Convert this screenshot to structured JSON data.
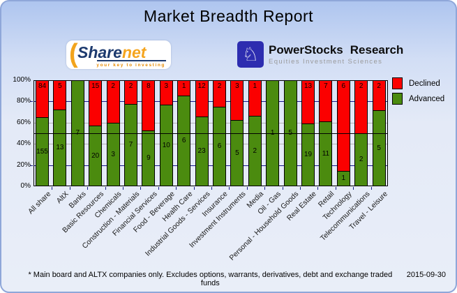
{
  "page": {
    "title": "Market Breadth Report",
    "footer_note": "* Main board and ALTX companies only. Excludes options, warrants, derivatives, debt and exchange traded funds",
    "footer_date": "2015-09-30"
  },
  "logos": {
    "sharenet": {
      "arc_glyph": "(",
      "name_part1": "Share",
      "name_part2": "net",
      "tagline": "your key to investing",
      "navy_color": "#1d3a6e",
      "orange_color": "#f5a51f"
    },
    "powerstocks": {
      "knight_glyph": "♘",
      "title1": "PowerStocks",
      "title2": "Research",
      "subtitle": "Equities Investment Sciences",
      "square_color": "#2d2db0"
    }
  },
  "legend": [
    {
      "label": "Declined",
      "color": "#fb0000"
    },
    {
      "label": "Advanced",
      "color": "#4b8b0f"
    }
  ],
  "chart_data": {
    "type": "bar",
    "stacked": true,
    "title": "Market Breadth Report",
    "xlabel": "",
    "ylabel": "",
    "ylim": [
      0,
      100
    ],
    "y_unit": "percent of companies",
    "y_ticks": [
      {
        "label": "100%",
        "value": 100
      },
      {
        "label": "80%",
        "value": 80
      },
      {
        "label": "60%",
        "value": 60
      },
      {
        "label": "40%",
        "value": 40
      },
      {
        "label": "20%",
        "value": 20
      },
      {
        "label": "0%",
        "value": 0
      }
    ],
    "grid": {
      "navy_lines_percent": [
        20,
        80
      ],
      "gray_lines_percent": [
        40,
        60
      ],
      "midline_percent": 50,
      "navy_color": "#16168c",
      "gray_color": "#b3b3b3",
      "midline_color": "#000000"
    },
    "legend_position": "top-right",
    "categories": [
      "All share",
      "AltX",
      "Banks",
      "Basic Resources",
      "Chemicals",
      "Construction - Materials",
      "Financial Services",
      "Food - Beverage",
      "Health Care",
      "Industrial Goods - Services",
      "Insurance",
      "Investment Instruments",
      "Media",
      "Oil - Gas",
      "Personal - Household Goods",
      "Real Estate",
      "Retail",
      "Technology",
      "Telecommunications",
      "Travel - Leisure"
    ],
    "series": [
      {
        "name": "Declined",
        "color": "#fb0000",
        "values": [
          84,
          5,
          0,
          15,
          2,
          2,
          8,
          3,
          1,
          12,
          2,
          3,
          1,
          0,
          0,
          13,
          7,
          6,
          2,
          2
        ]
      },
      {
        "name": "Advanced",
        "color": "#4b8b0f",
        "values": [
          155,
          13,
          7,
          20,
          3,
          7,
          9,
          10,
          6,
          23,
          6,
          5,
          2,
          1,
          5,
          19,
          11,
          1,
          2,
          5
        ]
      }
    ]
  }
}
